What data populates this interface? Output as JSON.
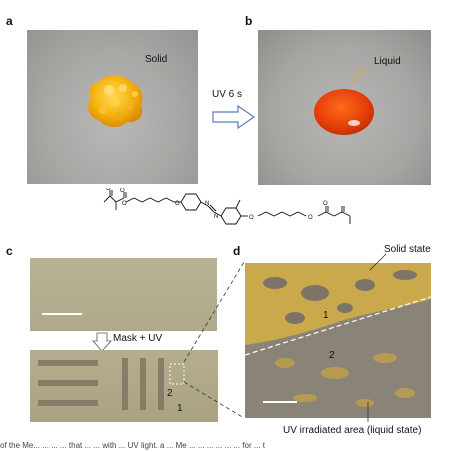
{
  "panels": {
    "a": {
      "letter": "a",
      "caption": "Solid"
    },
    "b": {
      "letter": "b",
      "caption": "Liquid"
    },
    "c": {
      "letter": "c",
      "mask_label": "Mask + UV",
      "region_1": "1",
      "region_2": "2"
    },
    "d": {
      "letter": "d",
      "solid_label": "Solid state",
      "region_1": "1",
      "region_2": "2",
      "irradiated_label": "UV irradiated area (liquid state)"
    }
  },
  "arrow_label": "UV 6 s",
  "footer_text": "of the Me... ... ... ... that ... ... with ... UV light. a ... Me ... ... ... ... ... ... for ... t"
}
